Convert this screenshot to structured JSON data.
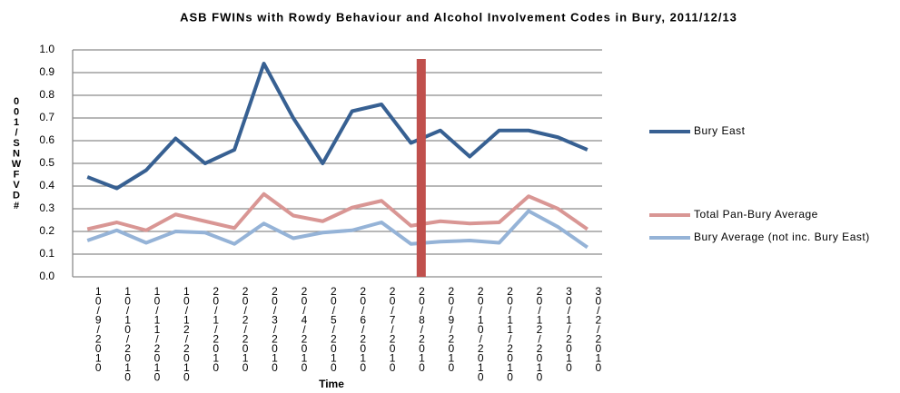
{
  "chart_data": {
    "type": "line",
    "title": "ASB FWINs with Rowdy Behaviour and Alcohol Involvement Codes in Bury, 2011/12/13",
    "x_label": "Time",
    "y_label": "001/SNWFVD#",
    "categories": [
      "10/9/2010",
      "10/10/2010",
      "10/11/2010",
      "10/12/2010",
      "20/1/2010",
      "20/2/2010",
      "20/3/2010",
      "20/4/2010",
      "20/5/2010",
      "20/6/2010",
      "20/7/2010",
      "20/8/2010",
      "20/9/2010",
      "20/10/2010",
      "20/11/2010",
      "20/12/2010",
      "30/1/2010",
      "30/2/2010"
    ],
    "series": [
      {
        "name": "Bury East",
        "color": "#376092",
        "values": [
          0.44,
          0.39,
          0.47,
          0.61,
          0.5,
          0.56,
          0.94,
          0.7,
          0.5,
          0.73,
          0.76,
          0.59,
          0.645,
          0.53,
          0.645,
          0.645,
          0.615,
          0.56
        ]
      },
      {
        "name": "Bury Average (not inc. Bury East)",
        "color": "#95b3d7",
        "values": [
          0.16,
          0.205,
          0.15,
          0.2,
          0.195,
          0.145,
          0.235,
          0.17,
          0.195,
          0.205,
          0.24,
          0.145,
          0.155,
          0.16,
          0.15,
          0.29,
          0.22,
          0.13
        ]
      },
      {
        "name": "Total Pan-Bury Average",
        "color": "#d99694",
        "values": [
          0.21,
          0.24,
          0.205,
          0.275,
          0.245,
          0.215,
          0.365,
          0.27,
          0.245,
          0.305,
          0.335,
          0.225,
          0.245,
          0.235,
          0.24,
          0.355,
          0.3,
          0.21
        ]
      }
    ],
    "reference_bar": {
      "x": 11.35,
      "value": 0.96,
      "color": "#c0504d"
    },
    "ylim": [
      0,
      1
    ],
    "yticks": [
      {
        "value": 0,
        "label": "0.0"
      },
      0.1,
      0.2,
      0.3,
      0.4,
      0.5,
      0.6,
      0.7,
      0.8,
      0.9,
      {
        "value": 1,
        "label": "1.0"
      }
    ],
    "grid": true,
    "legend": "right"
  }
}
